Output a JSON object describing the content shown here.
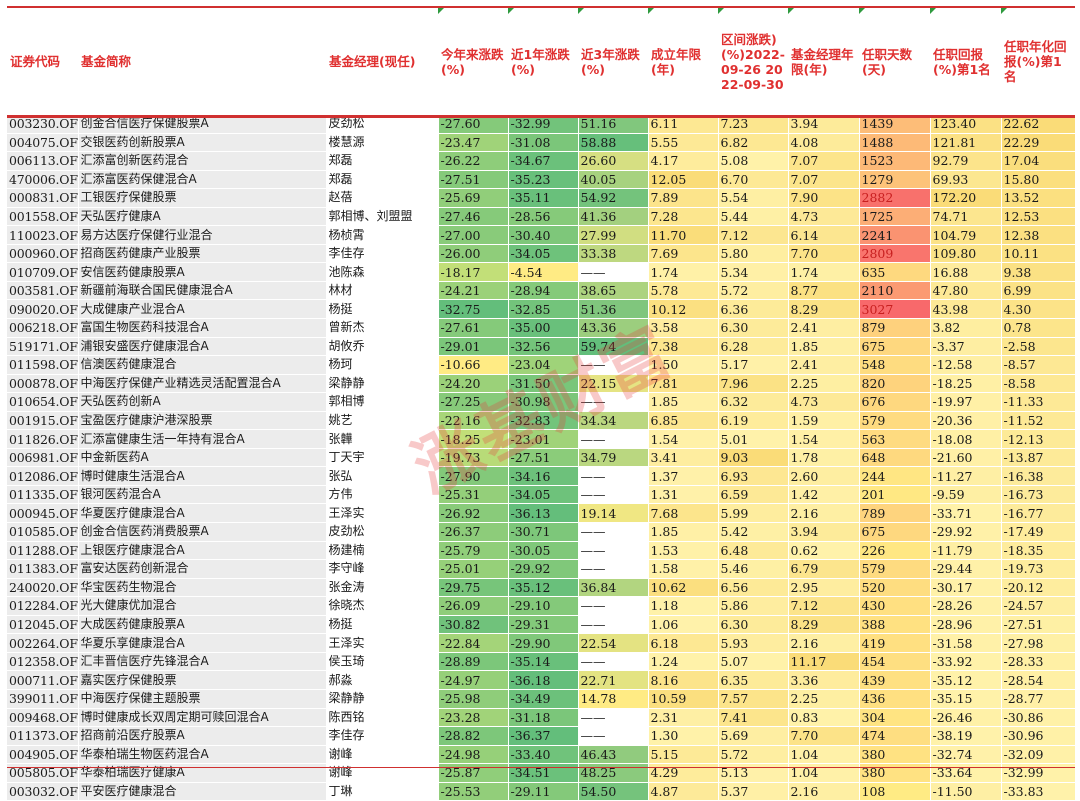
{
  "headers": [
    {
      "label": "证券代码"
    },
    {
      "label": "基金简称"
    },
    {
      "label": "基金经理(现任)"
    },
    {
      "label": "今年来涨跌(%)"
    },
    {
      "label": "近1年涨跌(%)"
    },
    {
      "label": "近3年涨跌(%)"
    },
    {
      "label": "成立年限(年)"
    },
    {
      "label": "区间涨跌)(%)2022-09-26 2022-09-30"
    },
    {
      "label": "基金经理年限(年)"
    },
    {
      "label": "任职天数(天)"
    },
    {
      "label": "任职回报(%)第1名"
    },
    {
      "label": "任职年化回报(%)第1名"
    }
  ],
  "colors": {
    "accent": "#d03030",
    "header_text": "#e03030",
    "green_strong": "#57bb6a",
    "yellow": "#ffeb84",
    "red_strong": "#f8696b",
    "neutral_gray": "#ececec"
  },
  "watermark": "涨基财富",
  "rows": [
    {
      "code": "003230.OF",
      "name": "创金合信医疗保健股票A",
      "manager": "皮劲松",
      "ytd": "-27.60",
      "y1": "-32.99",
      "y3": "51.16",
      "age": "6.11",
      "wk": "7.23",
      "mgr_years": "3.94",
      "days": "1439",
      "ret": "123.40",
      "ann": "22.62"
    },
    {
      "code": "004075.OF",
      "name": "交银医药创新股票A",
      "manager": "楼慧源",
      "ytd": "-23.47",
      "y1": "-31.08",
      "y3": "58.88",
      "age": "5.55",
      "wk": "6.82",
      "mgr_years": "4.08",
      "days": "1488",
      "ret": "121.81",
      "ann": "22.29"
    },
    {
      "code": "006113.OF",
      "name": "汇添富创新医药混合",
      "manager": "郑磊",
      "ytd": "-26.22",
      "y1": "-34.67",
      "y3": "26.60",
      "age": "4.17",
      "wk": "5.08",
      "mgr_years": "7.07",
      "days": "1523",
      "ret": "92.79",
      "ann": "17.04"
    },
    {
      "code": "470006.OF",
      "name": "汇添富医药保健混合A",
      "manager": "郑磊",
      "ytd": "-27.51",
      "y1": "-35.23",
      "y3": "40.05",
      "age": "12.05",
      "wk": "6.70",
      "mgr_years": "7.07",
      "days": "1279",
      "ret": "69.93",
      "ann": "15.80"
    },
    {
      "code": "000831.OF",
      "name": "工银医疗保健股票",
      "manager": "赵蓓",
      "ytd": "-25.69",
      "y1": "-35.11",
      "y3": "54.92",
      "age": "7.89",
      "wk": "5.54",
      "mgr_years": "7.90",
      "days": "2882",
      "ret": "172.20",
      "ann": "13.52"
    },
    {
      "code": "001558.OF",
      "name": "天弘医疗健康A",
      "manager": "郭相博、刘盟盟",
      "ytd": "-27.46",
      "y1": "-28.56",
      "y3": "41.36",
      "age": "7.28",
      "wk": "5.44",
      "mgr_years": "4.73",
      "days": "1725",
      "ret": "74.71",
      "ann": "12.53"
    },
    {
      "code": "110023.OF",
      "name": "易方达医疗保健行业混合",
      "manager": "杨桢霄",
      "ytd": "-27.00",
      "y1": "-30.40",
      "y3": "27.99",
      "age": "11.70",
      "wk": "7.12",
      "mgr_years": "6.14",
      "days": "2241",
      "ret": "104.79",
      "ann": "12.38"
    },
    {
      "code": "000960.OF",
      "name": "招商医药健康产业股票",
      "manager": "李佳存",
      "ytd": "-26.00",
      "y1": "-34.05",
      "y3": "33.38",
      "age": "7.69",
      "wk": "5.80",
      "mgr_years": "7.70",
      "days": "2809",
      "ret": "109.80",
      "ann": "10.11"
    },
    {
      "code": "010709.OF",
      "name": "安信医药健康股票A",
      "manager": "池陈森",
      "ytd": "-18.17",
      "y1": "-4.54",
      "y3": "——",
      "age": "1.74",
      "wk": "5.34",
      "mgr_years": "1.74",
      "days": "635",
      "ret": "16.88",
      "ann": "9.38"
    },
    {
      "code": "003581.OF",
      "name": "新疆前海联合国民健康混合A",
      "manager": "林材",
      "ytd": "-24.21",
      "y1": "-28.94",
      "y3": "38.65",
      "age": "5.78",
      "wk": "5.72",
      "mgr_years": "8.77",
      "days": "2110",
      "ret": "47.80",
      "ann": "6.99"
    },
    {
      "code": "090020.OF",
      "name": "大成健康产业混合A",
      "manager": "杨挺",
      "ytd": "-32.75",
      "y1": "-32.85",
      "y3": "51.36",
      "age": "10.12",
      "wk": "6.36",
      "mgr_years": "8.29",
      "days": "3027",
      "ret": "43.98",
      "ann": "4.30"
    },
    {
      "code": "006218.OF",
      "name": "富国生物医药科技混合A",
      "manager": "曾新杰",
      "ytd": "-27.61",
      "y1": "-35.00",
      "y3": "43.36",
      "age": "3.58",
      "wk": "6.30",
      "mgr_years": "2.41",
      "days": "879",
      "ret": "3.82",
      "ann": "0.78"
    },
    {
      "code": "519171.OF",
      "name": "浦银安盛医疗健康混合A",
      "manager": "胡攸乔",
      "ytd": "-29.01",
      "y1": "-32.56",
      "y3": "59.74",
      "age": "7.38",
      "wk": "6.28",
      "mgr_years": "1.85",
      "days": "675",
      "ret": "-3.37",
      "ann": "-2.58"
    },
    {
      "code": "011598.OF",
      "name": "信澳医药健康混合",
      "manager": "杨珂",
      "ytd": "-10.66",
      "y1": "-23.04",
      "y3": "——",
      "age": "1.50",
      "wk": "5.17",
      "mgr_years": "2.41",
      "days": "548",
      "ret": "-12.58",
      "ann": "-8.57"
    },
    {
      "code": "000878.OF",
      "name": "中海医疗保健产业精选灵活配置混合A",
      "manager": "梁静静",
      "ytd": "-24.20",
      "y1": "-31.50",
      "y3": "22.15",
      "age": "7.81",
      "wk": "7.96",
      "mgr_years": "2.25",
      "days": "820",
      "ret": "-18.25",
      "ann": "-8.58"
    },
    {
      "code": "010654.OF",
      "name": "天弘医药创新A",
      "manager": "郭相博",
      "ytd": "-27.25",
      "y1": "-30.98",
      "y3": "——",
      "age": "1.85",
      "wk": "6.32",
      "mgr_years": "4.73",
      "days": "676",
      "ret": "-19.97",
      "ann": "-11.33"
    },
    {
      "code": "001915.OF",
      "name": "宝盈医疗健康沪港深股票",
      "manager": "姚艺",
      "ytd": "-22.16",
      "y1": "-32.83",
      "y3": "34.34",
      "age": "6.85",
      "wk": "6.19",
      "mgr_years": "1.59",
      "days": "579",
      "ret": "-20.36",
      "ann": "-11.52"
    },
    {
      "code": "011826.OF",
      "name": "汇添富健康生活一年持有混合A",
      "manager": "张韡",
      "ytd": "-18.25",
      "y1": "-23.01",
      "y3": "——",
      "age": "1.54",
      "wk": "5.01",
      "mgr_years": "1.54",
      "days": "563",
      "ret": "-18.08",
      "ann": "-12.13"
    },
    {
      "code": "006981.OF",
      "name": "中金新医药A",
      "manager": "丁天宇",
      "ytd": "-19.73",
      "y1": "-27.51",
      "y3": "34.79",
      "age": "3.41",
      "wk": "9.03",
      "mgr_years": "1.78",
      "days": "648",
      "ret": "-21.60",
      "ann": "-13.87"
    },
    {
      "code": "012086.OF",
      "name": "博时健康生活混合A",
      "manager": "张弘",
      "ytd": "-27.90",
      "y1": "-34.16",
      "y3": "——",
      "age": "1.37",
      "wk": "6.93",
      "mgr_years": "2.60",
      "days": "244",
      "ret": "-11.27",
      "ann": "-16.38"
    },
    {
      "code": "011335.OF",
      "name": "银河医药混合A",
      "manager": "方伟",
      "ytd": "-25.31",
      "y1": "-34.05",
      "y3": "——",
      "age": "1.31",
      "wk": "6.59",
      "mgr_years": "1.42",
      "days": "201",
      "ret": "-9.59",
      "ann": "-16.73"
    },
    {
      "code": "000945.OF",
      "name": "华夏医疗健康混合A",
      "manager": "王泽实",
      "ytd": "-26.92",
      "y1": "-36.13",
      "y3": "19.14",
      "age": "7.68",
      "wk": "5.99",
      "mgr_years": "2.16",
      "days": "789",
      "ret": "-33.71",
      "ann": "-16.77"
    },
    {
      "code": "010585.OF",
      "name": "创金合信医药消费股票A",
      "manager": "皮劲松",
      "ytd": "-26.37",
      "y1": "-30.71",
      "y3": "——",
      "age": "1.85",
      "wk": "5.42",
      "mgr_years": "3.94",
      "days": "675",
      "ret": "-29.92",
      "ann": "-17.49"
    },
    {
      "code": "011288.OF",
      "name": "上银医疗健康混合A",
      "manager": "杨建楠",
      "ytd": "-25.79",
      "y1": "-30.05",
      "y3": "——",
      "age": "1.53",
      "wk": "6.48",
      "mgr_years": "0.62",
      "days": "226",
      "ret": "-11.79",
      "ann": "-18.35"
    },
    {
      "code": "011383.OF",
      "name": "富安达医药创新混合",
      "manager": "李守峰",
      "ytd": "-25.01",
      "y1": "-29.92",
      "y3": "——",
      "age": "1.58",
      "wk": "5.46",
      "mgr_years": "6.79",
      "days": "579",
      "ret": "-29.44",
      "ann": "-19.73"
    },
    {
      "code": "240020.OF",
      "name": "华宝医药生物混合",
      "manager": "张金涛",
      "ytd": "-29.75",
      "y1": "-35.12",
      "y3": "36.84",
      "age": "10.62",
      "wk": "6.56",
      "mgr_years": "2.95",
      "days": "520",
      "ret": "-30.17",
      "ann": "-20.12"
    },
    {
      "code": "012284.OF",
      "name": "光大健康优加混合",
      "manager": "徐晓杰",
      "ytd": "-26.09",
      "y1": "-29.10",
      "y3": "——",
      "age": "1.18",
      "wk": "5.86",
      "mgr_years": "7.12",
      "days": "430",
      "ret": "-28.26",
      "ann": "-24.57"
    },
    {
      "code": "012045.OF",
      "name": "大成医药健康股票A",
      "manager": "杨挺",
      "ytd": "-30.82",
      "y1": "-29.31",
      "y3": "——",
      "age": "1.06",
      "wk": "6.30",
      "mgr_years": "8.29",
      "days": "388",
      "ret": "-28.96",
      "ann": "-27.51"
    },
    {
      "code": "002264.OF",
      "name": "华夏乐享健康混合A",
      "manager": "王泽实",
      "ytd": "-22.84",
      "y1": "-29.90",
      "y3": "22.54",
      "age": "6.18",
      "wk": "5.93",
      "mgr_years": "2.16",
      "days": "419",
      "ret": "-31.58",
      "ann": "-27.98"
    },
    {
      "code": "012358.OF",
      "name": "汇丰晋信医疗先锋混合A",
      "manager": "侯玉琦",
      "ytd": "-28.89",
      "y1": "-35.14",
      "y3": "——",
      "age": "1.24",
      "wk": "5.07",
      "mgr_years": "11.17",
      "days": "454",
      "ret": "-33.92",
      "ann": "-28.33"
    },
    {
      "code": "000711.OF",
      "name": "嘉实医疗保健股票",
      "manager": "郝淼",
      "ytd": "-24.97",
      "y1": "-36.18",
      "y3": "22.71",
      "age": "8.16",
      "wk": "6.35",
      "mgr_years": "3.36",
      "days": "439",
      "ret": "-35.12",
      "ann": "-28.54"
    },
    {
      "code": "399011.OF",
      "name": "中海医疗保健主题股票",
      "manager": "梁静静",
      "ytd": "-25.98",
      "y1": "-34.49",
      "y3": "14.78",
      "age": "10.59",
      "wk": "7.57",
      "mgr_years": "2.25",
      "days": "436",
      "ret": "-35.15",
      "ann": "-28.77"
    },
    {
      "code": "009468.OF",
      "name": "博时健康成长双周定期可赎回混合A",
      "manager": "陈西铭",
      "ytd": "-23.28",
      "y1": "-31.18",
      "y3": "——",
      "age": "2.31",
      "wk": "7.41",
      "mgr_years": "0.83",
      "days": "304",
      "ret": "-26.46",
      "ann": "-30.86"
    },
    {
      "code": "011373.OF",
      "name": "招商前沿医疗股票A",
      "manager": "李佳存",
      "ytd": "-28.82",
      "y1": "-36.37",
      "y3": "——",
      "age": "1.30",
      "wk": "5.69",
      "mgr_years": "7.70",
      "days": "474",
      "ret": "-38.19",
      "ann": "-30.96"
    },
    {
      "code": "004905.OF",
      "name": "华泰柏瑞生物医药混合A",
      "manager": "谢峰",
      "ytd": "-24.98",
      "y1": "-33.40",
      "y3": "46.43",
      "age": "5.15",
      "wk": "5.72",
      "mgr_years": "1.04",
      "days": "380",
      "ret": "-32.74",
      "ann": "-32.09"
    },
    {
      "code": "005805.OF",
      "name": "华泰柏瑞医疗健康A",
      "manager": "谢峰",
      "ytd": "-25.87",
      "y1": "-34.51",
      "y3": "48.25",
      "age": "4.29",
      "wk": "5.13",
      "mgr_years": "1.04",
      "days": "380",
      "ret": "-33.64",
      "ann": "-32.99"
    },
    {
      "code": "003032.OF",
      "name": "平安医疗健康混合",
      "manager": "丁琳",
      "ytd": "-25.53",
      "y1": "-29.11",
      "y3": "54.50",
      "age": "4.87",
      "wk": "5.37",
      "mgr_years": "2.16",
      "days": "108",
      "ret": "-11.50",
      "ann": "-33.83"
    }
  ]
}
